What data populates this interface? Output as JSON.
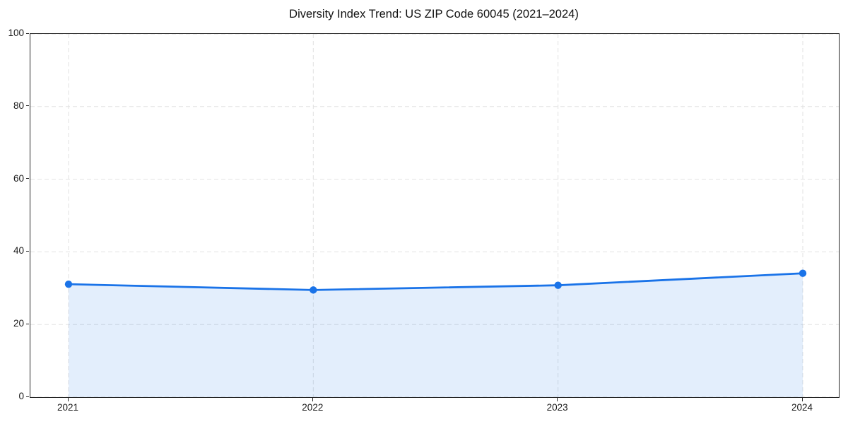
{
  "chart_data": {
    "type": "area",
    "title": "Diversity Index Trend: US ZIP Code 60045 (2021–2024)",
    "xlabel": "",
    "ylabel": "",
    "x": [
      2021,
      2022,
      2023,
      2024
    ],
    "xtick_labels": [
      "2021",
      "2022",
      "2023",
      "2024"
    ],
    "series": [
      {
        "name": "Diversity Index",
        "values": [
          31.1,
          29.5,
          30.8,
          34.1
        ]
      }
    ],
    "ylim": [
      0,
      100
    ],
    "yticks": [
      0,
      20,
      40,
      60,
      80,
      100
    ],
    "grid": "dashed",
    "legend": "none",
    "colors": {
      "line": "#1a73e8",
      "marker": "#1a73e8",
      "area_fill": "rgba(26,115,232,0.12)",
      "gridline": "#e2e2e2",
      "spine": "#262626",
      "text": "#1a1a1a",
      "background": "#ffffff"
    }
  }
}
